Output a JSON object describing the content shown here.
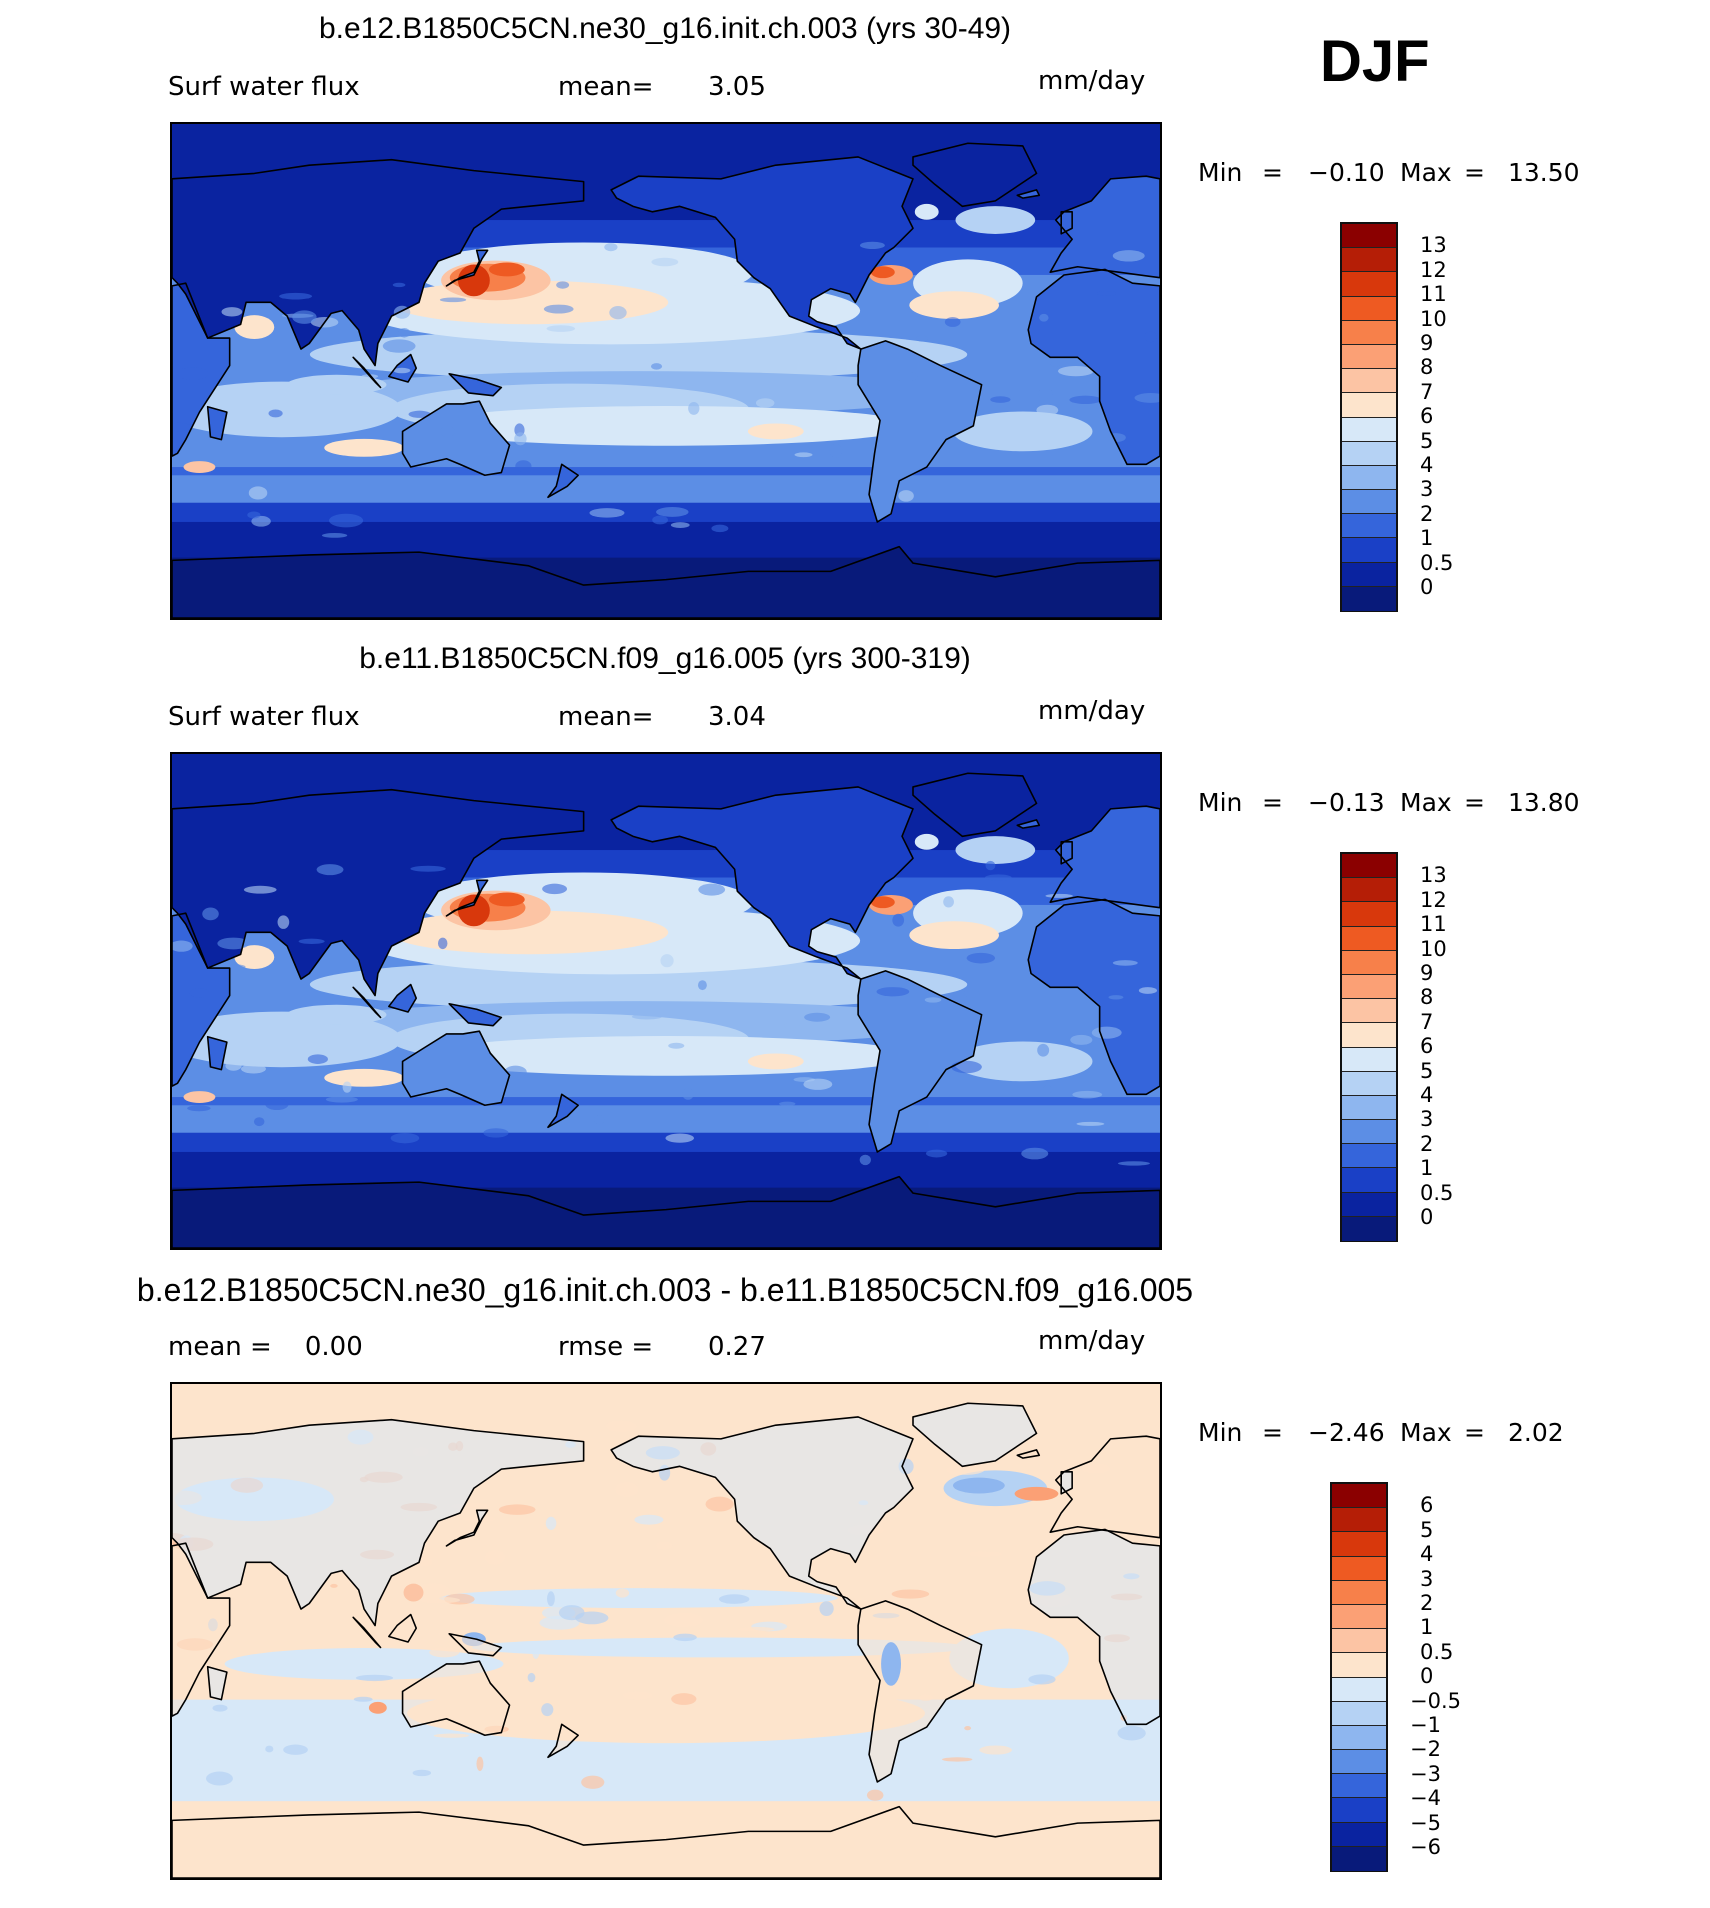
{
  "season": "DJF",
  "panels": [
    {
      "id": "model-a",
      "title": "b.e12.B1850C5CN.ne30_g16.init.ch.003 (yrs 30-49)",
      "left_label": "Surf water flux",
      "mid_label": "mean=",
      "mid_value": "3.05",
      "units": "mm/day",
      "min_label": "Min",
      "min_value": "−0.10",
      "max_label": "Max",
      "max_value": "13.50",
      "eq": "=",
      "colorbar": {
        "labels": [
          "13",
          "12",
          "11",
          "10",
          "9",
          "8",
          "7",
          "6",
          "5",
          "4",
          "3",
          "2",
          "1",
          "0.5",
          "0"
        ],
        "colors": [
          "#8b0000",
          "#b51e06",
          "#d8380c",
          "#ee5a22",
          "#f7804a",
          "#fba075",
          "#fcc4a4",
          "#fde4cc",
          "#d7e8f8",
          "#b5d2f4",
          "#8eb6ef",
          "#5c8ee5",
          "#3565db",
          "#1a40c6",
          "#0a23a0",
          "#081a7a"
        ]
      },
      "map_scheme": "absolute"
    },
    {
      "id": "model-b",
      "title": "b.e11.B1850C5CN.f09_g16.005 (yrs 300-319)",
      "left_label": "Surf water flux",
      "mid_label": "mean=",
      "mid_value": "3.04",
      "units": "mm/day",
      "min_label": "Min",
      "min_value": "−0.13",
      "max_label": "Max",
      "max_value": "13.80",
      "eq": "=",
      "colorbar": {
        "labels": [
          "13",
          "12",
          "11",
          "10",
          "9",
          "8",
          "7",
          "6",
          "5",
          "4",
          "3",
          "2",
          "1",
          "0.5",
          "0"
        ],
        "colors": [
          "#8b0000",
          "#b51e06",
          "#d8380c",
          "#ee5a22",
          "#f7804a",
          "#fba075",
          "#fcc4a4",
          "#fde4cc",
          "#d7e8f8",
          "#b5d2f4",
          "#8eb6ef",
          "#5c8ee5",
          "#3565db",
          "#1a40c6",
          "#0a23a0",
          "#081a7a"
        ]
      },
      "map_scheme": "absolute"
    },
    {
      "id": "difference",
      "title": "b.e12.B1850C5CN.ne30_g16.init.ch.003 - b.e11.B1850C5CN.f09_g16.005",
      "left_label": "mean =    0.00",
      "mid_label": "rmse =",
      "mid_value": "0.27",
      "units": "mm/day",
      "min_label": "Min",
      "min_value": "−2.46",
      "max_label": "Max",
      "max_value": "2.02",
      "eq": "=",
      "colorbar": {
        "labels": [
          "6",
          "5",
          "4",
          "3",
          "2",
          "1",
          "0.5",
          "0",
          "−0.5",
          "−1",
          "−2",
          "−3",
          "−4",
          "−5",
          "−6"
        ],
        "colors": [
          "#8b0000",
          "#b51e06",
          "#d8380c",
          "#ee5a22",
          "#f7804a",
          "#fba075",
          "#fcc4a4",
          "#fde4cc",
          "#d7e8f8",
          "#b5d2f4",
          "#8eb6ef",
          "#5c8ee5",
          "#3565db",
          "#1a40c6",
          "#0a23a0",
          "#081a7a"
        ]
      },
      "map_scheme": "difference"
    }
  ]
}
